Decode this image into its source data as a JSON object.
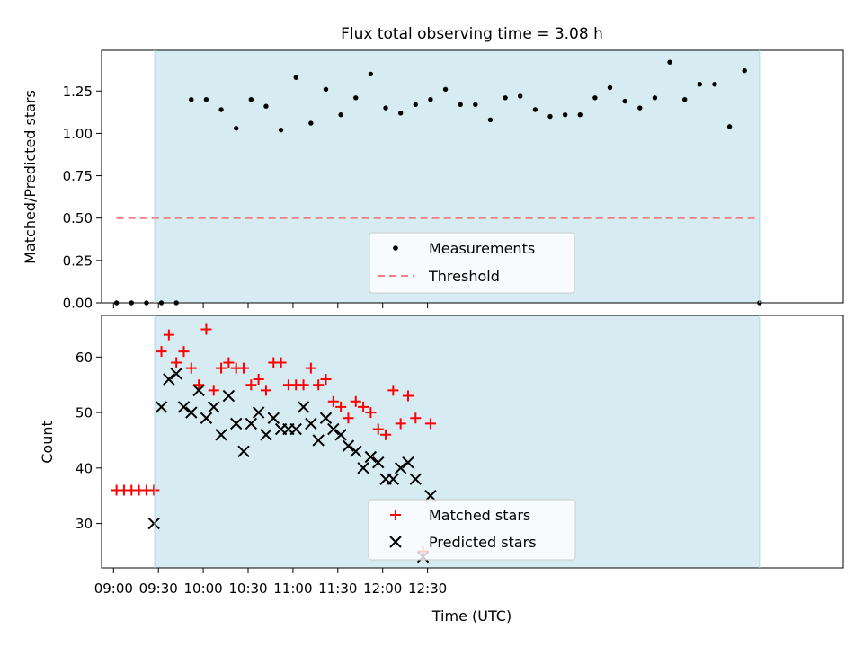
{
  "chart_data": [
    {
      "id": "ratio",
      "type": "scatter",
      "title": "Flux total observing time = 3.08 h",
      "ylabel": "Matched/Predicted stars",
      "xlabel": "",
      "ylim": [
        0,
        1.49
      ],
      "yticks": [
        0,
        0.25,
        0.5,
        0.75,
        1.0,
        1.25
      ],
      "ytick_labels": [
        "0.00",
        "0.25",
        "0.50",
        "0.75",
        "1.00",
        "1.25"
      ],
      "xlim_minutes": [
        -8,
        488
      ],
      "shaded_span_minutes": [
        27.5,
        432
      ],
      "series": [
        {
          "name": "Measurements",
          "marker": "dot",
          "color": "#000000",
          "x_minutes": [
            2,
            12,
            22,
            32,
            42,
            52,
            62,
            72,
            82,
            92,
            102,
            112,
            122,
            132,
            142,
            152,
            162,
            172,
            182,
            192,
            202,
            212,
            222,
            232,
            242,
            252,
            262,
            272,
            282,
            292,
            302,
            312,
            322,
            332,
            342,
            352,
            362,
            372,
            382,
            392,
            402,
            412,
            422,
            432
          ],
          "values": [
            0,
            0,
            0,
            0,
            0,
            1.2,
            1.2,
            1.14,
            1.03,
            1.2,
            1.16,
            1.02,
            1.33,
            1.06,
            1.26,
            1.11,
            1.21,
            1.35,
            1.15,
            1.12,
            1.17,
            1.2,
            1.26,
            1.17,
            1.17,
            1.08,
            1.21,
            1.22,
            1.14,
            1.1,
            1.11,
            1.11,
            1.21,
            1.27,
            1.19,
            1.15,
            1.21,
            1.42,
            1.2,
            1.29,
            1.29,
            1.04,
            1.37,
            0
          ]
        },
        {
          "name": "Threshold",
          "marker": "dashed-line",
          "color": "#f08080",
          "x_minutes": [
            2,
            432
          ],
          "values": [
            0.5,
            0.5
          ]
        }
      ],
      "legend": [
        "Measurements",
        "Threshold"
      ],
      "legend_location": "lower-center"
    },
    {
      "id": "count",
      "type": "scatter",
      "title": "",
      "ylabel": "Count",
      "xlabel": "Time (UTC)",
      "ylim": [
        22,
        67.5
      ],
      "yticks": [
        30,
        40,
        50,
        60
      ],
      "ytick_labels": [
        "30",
        "40",
        "50",
        "60"
      ],
      "xlim_minutes": [
        -8,
        488
      ],
      "xticks_minutes": [
        0,
        30,
        60,
        90,
        120,
        150,
        180,
        210
      ],
      "xtick_labels": [
        "09:00",
        "09:30",
        "10:00",
        "10:30",
        "11:00",
        "11:30",
        "12:00",
        "12:30"
      ],
      "shaded_span_minutes": [
        27.5,
        432
      ],
      "series": [
        {
          "name": "Matched stars",
          "marker": "plus",
          "color": "#ff0000",
          "x_minutes": [
            2,
            7,
            12,
            17,
            22,
            27,
            32,
            37,
            42,
            47,
            52,
            57,
            62,
            67,
            72,
            77,
            82,
            87,
            92,
            97,
            102,
            107,
            112,
            117,
            122,
            127,
            132,
            137,
            142,
            147,
            152,
            157,
            162,
            167,
            172,
            177,
            182,
            187,
            192,
            197,
            202,
            207,
            212
          ],
          "values": [
            36,
            36,
            36,
            36,
            36,
            36,
            61,
            64,
            59,
            61,
            58,
            55,
            65,
            54,
            58,
            59,
            58,
            58,
            55,
            56,
            54,
            59,
            59,
            55,
            55,
            55,
            58,
            55,
            56,
            52,
            51,
            49,
            52,
            51,
            50,
            47,
            46,
            54,
            48,
            53,
            49,
            25,
            48
          ]
        },
        {
          "name": "Predicted stars",
          "marker": "x",
          "color": "#000000",
          "x_minutes": [
            27,
            32,
            37,
            42,
            47,
            52,
            57,
            62,
            67,
            72,
            77,
            82,
            87,
            92,
            97,
            102,
            107,
            112,
            117,
            122,
            127,
            132,
            137,
            142,
            147,
            152,
            157,
            162,
            167,
            172,
            177,
            182,
            187,
            192,
            197,
            202,
            207,
            212
          ],
          "values": [
            30,
            51,
            56,
            57,
            51,
            50,
            54,
            49,
            51,
            46,
            53,
            48,
            43,
            48,
            50,
            46,
            49,
            47,
            47,
            47,
            51,
            48,
            45,
            49,
            47,
            46,
            44,
            43,
            40,
            42,
            41,
            38,
            38,
            40,
            41,
            38,
            24,
            35
          ]
        }
      ],
      "legend": [
        "Matched stars",
        "Predicted stars"
      ],
      "legend_location": "lower-center"
    }
  ]
}
